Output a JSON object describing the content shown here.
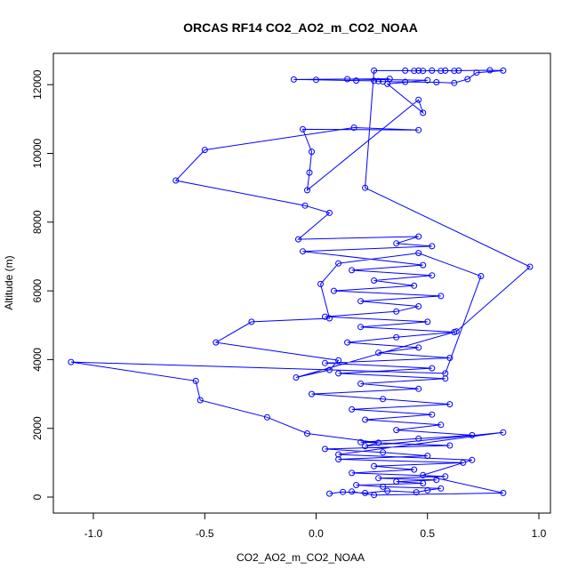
{
  "chart_data": {
    "type": "line",
    "title": "ORCAS RF14 CO2_AO2_m_CO2_NOAA",
    "xlabel": "CO2_AO2_m_CO2_NOAA",
    "ylabel": "Altitude (m)",
    "xlim": [
      -1.1,
      0.97
    ],
    "ylim": [
      0,
      12400
    ],
    "xticks": [
      -1.0,
      -0.5,
      0.0,
      0.5,
      1.0
    ],
    "xtick_labels": [
      "-1.0",
      "-0.5",
      "0.0",
      "0.5",
      "1.0"
    ],
    "yticks": [
      0,
      2000,
      4000,
      6000,
      8000,
      10000,
      12000
    ],
    "ytick_labels": [
      "0",
      "2000",
      "4000",
      "6000",
      "8000",
      "10000",
      "12000"
    ],
    "grid": false,
    "series": [
      {
        "color": "#0000ff",
        "marker": "open-circle",
        "points": [
          {
            "x": 0.06,
            "y": 100
          },
          {
            "x": 0.12,
            "y": 150
          },
          {
            "x": 0.22,
            "y": 120
          },
          {
            "x": 0.32,
            "y": 180
          },
          {
            "x": 0.45,
            "y": 140
          },
          {
            "x": 0.5,
            "y": 200
          },
          {
            "x": 0.56,
            "y": 250
          },
          {
            "x": 0.3,
            "y": 300
          },
          {
            "x": 0.18,
            "y": 350
          },
          {
            "x": 0.48,
            "y": 400
          },
          {
            "x": 0.36,
            "y": 450
          },
          {
            "x": 0.54,
            "y": 500
          },
          {
            "x": 0.28,
            "y": 550
          },
          {
            "x": 0.58,
            "y": 600
          },
          {
            "x": 0.16,
            "y": 700
          },
          {
            "x": 0.44,
            "y": 800
          },
          {
            "x": 0.26,
            "y": 900
          },
          {
            "x": 0.66,
            "y": 1000
          },
          {
            "x": 0.1,
            "y": 1100
          },
          {
            "x": 0.5,
            "y": 1200
          },
          {
            "x": 0.3,
            "y": 1300
          },
          {
            "x": 0.04,
            "y": 1400
          },
          {
            "x": 0.6,
            "y": 1500
          },
          {
            "x": 0.2,
            "y": 1600
          },
          {
            "x": 0.46,
            "y": 1700
          },
          {
            "x": 0.7,
            "y": 1800
          },
          {
            "x": 0.36,
            "y": 1950
          },
          {
            "x": 0.56,
            "y": 2100
          },
          {
            "x": 0.22,
            "y": 2250
          },
          {
            "x": 0.52,
            "y": 2400
          },
          {
            "x": 0.16,
            "y": 2550
          },
          {
            "x": 0.6,
            "y": 2700
          },
          {
            "x": 0.3,
            "y": 2850
          },
          {
            "x": -0.02,
            "y": 3000
          },
          {
            "x": 0.46,
            "y": 3150
          },
          {
            "x": 0.2,
            "y": 3300
          },
          {
            "x": 0.58,
            "y": 3450
          },
          {
            "x": 0.1,
            "y": 3600
          },
          {
            "x": 0.52,
            "y": 3750
          },
          {
            "x": 0.04,
            "y": 3900
          },
          {
            "x": 0.6,
            "y": 4050
          },
          {
            "x": 0.28,
            "y": 4200
          },
          {
            "x": 0.46,
            "y": 4350
          },
          {
            "x": 0.14,
            "y": 4500
          },
          {
            "x": 0.36,
            "y": 4650
          },
          {
            "x": 0.62,
            "y": 4800
          },
          {
            "x": 0.2,
            "y": 4950
          },
          {
            "x": 0.5,
            "y": 5100
          },
          {
            "x": 0.04,
            "y": 5250
          },
          {
            "x": 0.36,
            "y": 5400
          },
          {
            "x": 0.46,
            "y": 5550
          },
          {
            "x": 0.2,
            "y": 5700
          },
          {
            "x": 0.56,
            "y": 5850
          },
          {
            "x": 0.08,
            "y": 6000
          },
          {
            "x": 0.44,
            "y": 6150
          },
          {
            "x": 0.26,
            "y": 6300
          },
          {
            "x": 0.52,
            "y": 6450
          },
          {
            "x": 0.16,
            "y": 6600
          },
          {
            "x": 0.48,
            "y": 6750
          },
          {
            "x": -0.06,
            "y": 7150
          },
          {
            "x": 0.52,
            "y": 7300
          },
          {
            "x": 0.36,
            "y": 7380
          },
          {
            "x": 0.46,
            "y": 7580
          },
          {
            "x": -0.08,
            "y": 7500
          },
          {
            "x": 0.06,
            "y": 8270
          },
          {
            "x": -0.05,
            "y": 8480
          },
          {
            "x": -0.63,
            "y": 9210
          },
          {
            "x": -0.5,
            "y": 10100
          },
          {
            "x": 0.17,
            "y": 10750
          },
          {
            "x": 0.46,
            "y": 10680
          },
          {
            "x": -0.06,
            "y": 10700
          },
          {
            "x": -0.02,
            "y": 10050
          },
          {
            "x": -0.03,
            "y": 9440
          },
          {
            "x": -0.04,
            "y": 8930
          },
          {
            "x": 0.46,
            "y": 11560
          },
          {
            "x": 0.48,
            "y": 11180
          },
          {
            "x": 0.32,
            "y": 12020
          },
          {
            "x": 0.5,
            "y": 12130
          },
          {
            "x": 0.14,
            "y": 12160
          },
          {
            "x": 0.33,
            "y": 12170
          },
          {
            "x": -0.1,
            "y": 12150
          },
          {
            "x": 0.0,
            "y": 12140
          },
          {
            "x": 0.18,
            "y": 12120
          },
          {
            "x": 0.26,
            "y": 12110
          },
          {
            "x": 0.28,
            "y": 12100
          },
          {
            "x": 0.3,
            "y": 12090
          },
          {
            "x": 0.4,
            "y": 12080
          },
          {
            "x": 0.54,
            "y": 12070
          },
          {
            "x": 0.62,
            "y": 12050
          },
          {
            "x": 0.68,
            "y": 12160
          },
          {
            "x": 0.72,
            "y": 12350
          },
          {
            "x": 0.84,
            "y": 12410
          },
          {
            "x": 0.78,
            "y": 12420
          },
          {
            "x": 0.64,
            "y": 12410
          },
          {
            "x": 0.62,
            "y": 12400
          },
          {
            "x": 0.58,
            "y": 12410
          },
          {
            "x": 0.56,
            "y": 12400
          },
          {
            "x": 0.52,
            "y": 12410
          },
          {
            "x": 0.48,
            "y": 12400
          },
          {
            "x": 0.46,
            "y": 12410
          },
          {
            "x": 0.44,
            "y": 12400
          },
          {
            "x": 0.4,
            "y": 12410
          },
          {
            "x": 0.26,
            "y": 12410
          },
          {
            "x": 0.22,
            "y": 9000
          },
          {
            "x": 0.96,
            "y": 6700
          },
          {
            "x": 0.63,
            "y": 4820
          },
          {
            "x": -0.09,
            "y": 3480
          },
          {
            "x": 0.06,
            "y": 3700
          },
          {
            "x": 0.1,
            "y": 3980
          },
          {
            "x": -0.45,
            "y": 4500
          },
          {
            "x": -0.29,
            "y": 5100
          },
          {
            "x": 0.06,
            "y": 5200
          },
          {
            "x": 0.02,
            "y": 6200
          },
          {
            "x": 0.1,
            "y": 6800
          },
          {
            "x": 0.46,
            "y": 7100
          },
          {
            "x": 0.74,
            "y": 6430
          },
          {
            "x": 0.58,
            "y": 3600
          },
          {
            "x": -1.1,
            "y": 3930
          },
          {
            "x": -0.54,
            "y": 3380
          },
          {
            "x": -0.52,
            "y": 2820
          },
          {
            "x": -0.22,
            "y": 2320
          },
          {
            "x": -0.04,
            "y": 1850
          },
          {
            "x": 0.28,
            "y": 1580
          },
          {
            "x": 0.22,
            "y": 1480
          },
          {
            "x": 0.84,
            "y": 1880
          },
          {
            "x": 0.1,
            "y": 1240
          },
          {
            "x": 0.7,
            "y": 1080
          },
          {
            "x": 0.48,
            "y": 640
          },
          {
            "x": 0.84,
            "y": 120
          },
          {
            "x": 0.26,
            "y": 60
          },
          {
            "x": 0.16,
            "y": 160
          }
        ]
      }
    ]
  }
}
